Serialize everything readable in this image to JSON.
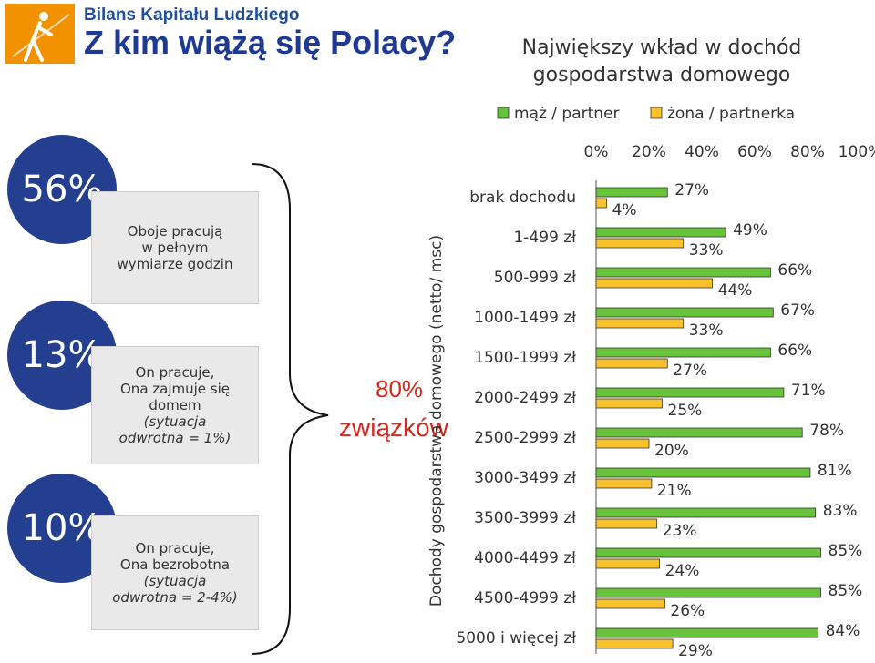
{
  "header": {
    "brand": "Bilans Kapitału Ludzkiego",
    "title": "Z kim wiążą się Polacy?"
  },
  "segments": [
    {
      "pct": "56%",
      "lines": [
        "Oboje pracują",
        "w pełnym",
        "wymiarze godzin"
      ]
    },
    {
      "pct": "13%",
      "lines": [
        "On pracuje,",
        "Ona zajmuje się",
        "domem"
      ],
      "italic_lines": [
        "(sytuacja",
        "odwrotna = 1%)"
      ]
    },
    {
      "pct": "10%",
      "lines": [
        "On pracuje,",
        "Ona bezrobotna"
      ],
      "italic_lines": [
        "(sytuacja",
        "odwrotna = 2-4%)"
      ]
    }
  ],
  "summary": {
    "pct": "80%",
    "label": "związków"
  },
  "chart_data": {
    "type": "bar",
    "orientation": "horizontal",
    "title": "Największy wkład w dochód gospodarstwa domowego",
    "ylabel": "Dochody gospodarstwa domowego (netto/ msc)",
    "xlim": [
      0,
      100
    ],
    "x_ticks": [
      "0%",
      "20%",
      "40%",
      "60%",
      "80%",
      "100%"
    ],
    "legend_position": "top",
    "categories": [
      "brak dochodu",
      "1-499 zł",
      "500-999 zł",
      "1000-1499 zł",
      "1500-1999 zł",
      "2000-2499 zł",
      "2500-2999 zł",
      "3000-3499 zł",
      "3500-3999 zł",
      "4000-4499 zł",
      "4500-4999 zł",
      "5000 i więcej zł"
    ],
    "series": [
      {
        "name": "mąż / partner",
        "color": "#66C33A",
        "values": [
          27,
          49,
          66,
          67,
          66,
          71,
          78,
          81,
          83,
          85,
          85,
          84
        ]
      },
      {
        "name": "żona / partnerka",
        "color": "#F9C22C",
        "values": [
          4,
          33,
          44,
          33,
          27,
          25,
          20,
          21,
          23,
          24,
          26,
          29
        ]
      }
    ]
  }
}
